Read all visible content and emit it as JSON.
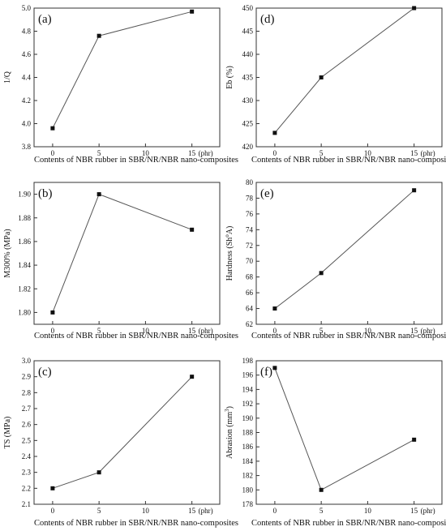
{
  "chart_data": [
    {
      "id": "a",
      "type": "line",
      "panel_label": "(a)",
      "ylabel": "1/Q",
      "ylabel_sup": "",
      "xlabel": "Contents of NBR rubber in SBR/NR/NBR nano-composites",
      "x_unit": "(phr)",
      "x": [
        0,
        5,
        15
      ],
      "y": [
        3.96,
        4.76,
        4.97
      ],
      "xlim": [
        -2,
        18
      ],
      "ylim": [
        3.8,
        5.0
      ],
      "xticks": [
        "0",
        "5",
        "10",
        "15"
      ],
      "yticks": [
        "3.8",
        "4.0",
        "4.2",
        "4.4",
        "4.6",
        "4.8",
        "5.0"
      ]
    },
    {
      "id": "b",
      "type": "line",
      "panel_label": "(b)",
      "ylabel": "M300% (MPa)",
      "ylabel_sup": "",
      "xlabel": "Contents of NBR rubber in SBR/NR/NBR nano-composites",
      "x_unit": "(phr)",
      "x": [
        0,
        5,
        15
      ],
      "y": [
        1.8,
        1.9,
        1.87
      ],
      "xlim": [
        -2,
        18
      ],
      "ylim": [
        1.79,
        1.91
      ],
      "xticks": [
        "0",
        "5",
        "10",
        "15"
      ],
      "yticks": [
        "1.80",
        "1.82",
        "1.84",
        "1.86",
        "1.88",
        "1.90"
      ]
    },
    {
      "id": "c",
      "type": "line",
      "panel_label": "(c)",
      "ylabel": "TS (MPa)",
      "ylabel_sup": "",
      "xlabel": "Contents of NBR rubber in SBR/NR/NBR nano-composites",
      "x_unit": "(phr)",
      "x": [
        0,
        5,
        15
      ],
      "y": [
        2.2,
        2.3,
        2.9
      ],
      "xlim": [
        -2,
        18
      ],
      "ylim": [
        2.1,
        3.0
      ],
      "xticks": [
        "0",
        "5",
        "10",
        "15"
      ],
      "yticks": [
        "2.1",
        "2.2",
        "2.3",
        "2.4",
        "2.5",
        "2.6",
        "2.7",
        "2.8",
        "2.9",
        "3.0"
      ]
    },
    {
      "id": "d",
      "type": "line",
      "panel_label": "(d)",
      "ylabel": "Eb (%)",
      "ylabel_sup": "",
      "xlabel": "Contents of NBR rubber in SBR/NR/NBR nano-composites",
      "x_unit": "(phr)",
      "x": [
        0,
        5,
        15
      ],
      "y": [
        423,
        435,
        450
      ],
      "xlim": [
        -2,
        18
      ],
      "ylim": [
        420,
        450
      ],
      "xticks": [
        "0",
        "5",
        "10",
        "15"
      ],
      "yticks": [
        "420",
        "425",
        "430",
        "435",
        "440",
        "445",
        "450"
      ]
    },
    {
      "id": "e",
      "type": "line",
      "panel_label": "(e)",
      "ylabel": "Hardness (Sh",
      "ylabel_sup": "o",
      "ylabel_tail": "A)",
      "xlabel": "Contents of NBR rubber in SBR/NR/NBR nano-composites",
      "x_unit": "(phr)",
      "x": [
        0,
        5,
        15
      ],
      "y": [
        64,
        68.5,
        79
      ],
      "xlim": [
        -2,
        18
      ],
      "ylim": [
        62,
        80
      ],
      "xticks": [
        "0",
        "5",
        "10",
        "15"
      ],
      "yticks": [
        "62",
        "64",
        "66",
        "68",
        "70",
        "72",
        "74",
        "76",
        "78",
        "80"
      ]
    },
    {
      "id": "f",
      "type": "line",
      "panel_label": "(f)",
      "ylabel": "Abrasion (mm",
      "ylabel_sup": "3",
      "ylabel_tail": ")",
      "xlabel": "Contents of NBR rubber in SBR/NR/NBR nano-composites",
      "x_unit": "(phr)",
      "x": [
        0,
        5,
        15
      ],
      "y": [
        197,
        180,
        187
      ],
      "xlim": [
        -2,
        18
      ],
      "ylim": [
        178,
        198
      ],
      "xticks": [
        "0",
        "5",
        "10",
        "15"
      ],
      "yticks": [
        "178",
        "180",
        "182",
        "184",
        "186",
        "188",
        "190",
        "192",
        "194",
        "196",
        "198"
      ]
    }
  ]
}
